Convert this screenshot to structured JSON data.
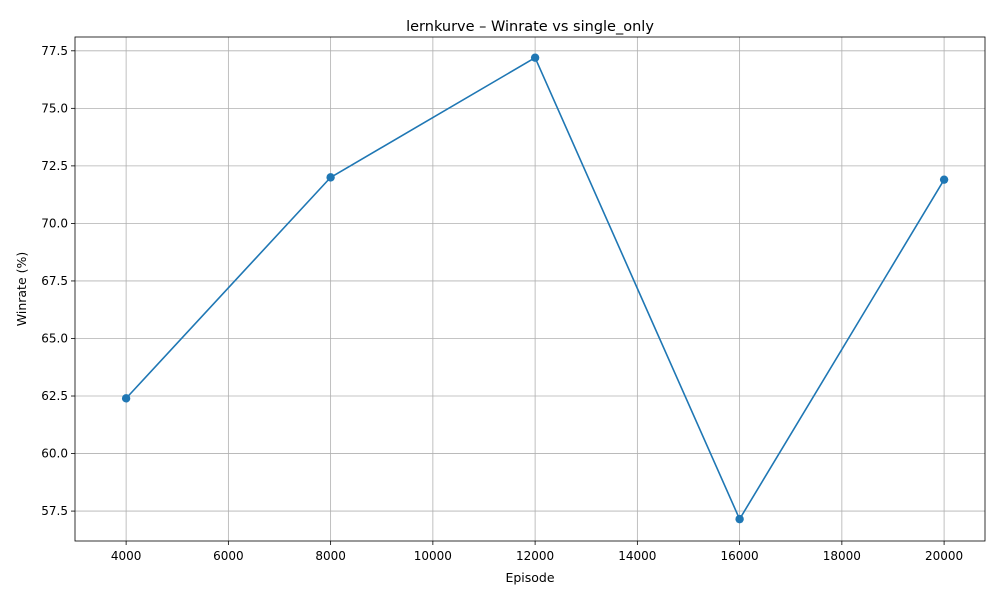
{
  "chart_data": {
    "type": "line",
    "title": "lernkurve – Winrate vs single_only",
    "xlabel": "Episode",
    "ylabel": "Winrate (%)",
    "grid": true,
    "marker": "circle",
    "xlim": [
      3000,
      20800
    ],
    "ylim": [
      56.2,
      78.1
    ],
    "xticks": [
      4000,
      6000,
      8000,
      10000,
      12000,
      14000,
      16000,
      18000,
      20000
    ],
    "yticks": [
      57.5,
      60.0,
      62.5,
      65.0,
      67.5,
      70.0,
      72.5,
      75.0,
      77.5
    ],
    "series": [
      {
        "color": "#1f77b4",
        "x": [
          4000,
          8000,
          12000,
          16000,
          20000
        ],
        "y": [
          62.4,
          72.0,
          77.2,
          57.15,
          71.9
        ]
      }
    ]
  }
}
